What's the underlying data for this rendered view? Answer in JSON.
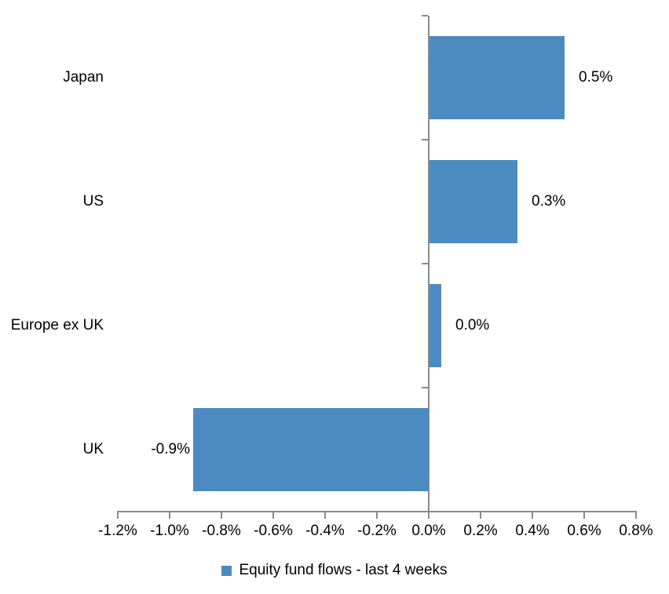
{
  "chart_data": {
    "type": "bar",
    "orientation": "horizontal",
    "title": "",
    "categories": [
      "Japan",
      "US",
      "Europe ex UK",
      "UK"
    ],
    "values": [
      0.52,
      0.34,
      0.045,
      -0.91
    ],
    "data_labels": [
      "0.5%",
      "0.3%",
      "0.0%",
      "-0.9%"
    ],
    "series": [
      {
        "name": "Equity fund flows - last 4 weeks",
        "values": [
          0.52,
          0.34,
          0.045,
          -0.91
        ]
      }
    ],
    "x_tick_values": [
      -1.2,
      -1.0,
      -0.8,
      -0.6,
      -0.4,
      -0.2,
      0.0,
      0.2,
      0.4,
      0.6,
      0.8
    ],
    "x_tick_labels": [
      "-1.2%",
      "-1.0%",
      "-0.8%",
      "-0.6%",
      "-0.4%",
      "-0.2%",
      "0.0%",
      "0.2%",
      "0.4%",
      "0.6%",
      "0.8%"
    ],
    "xlim": [
      -1.2,
      0.8
    ],
    "xlabel": "",
    "ylabel": "",
    "grid": false,
    "legend_label": "Equity fund flows - last 4 weeks",
    "legend_position": "bottom-center",
    "colors": {
      "bar": "#4c8bc2",
      "axis": "#8a8a8a",
      "text": "#000000",
      "background": "#ffffff"
    }
  }
}
